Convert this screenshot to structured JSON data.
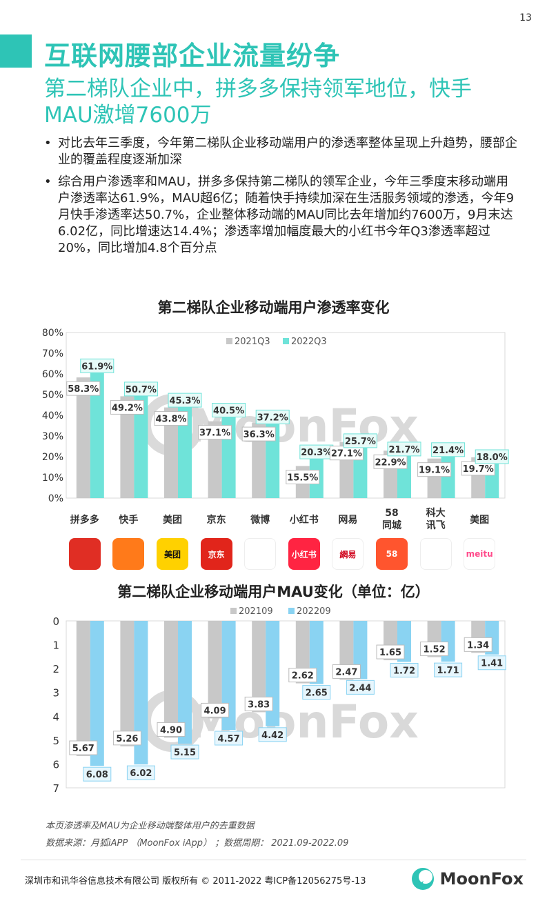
{
  "page_number": "13",
  "header": {
    "title": "互联网腰部企业流量纷争",
    "subtitle": "第二梯队企业中，拼多多保持领军地位，快手MAU激增7600万"
  },
  "bullets": [
    "对比去年三季度，今年第二梯队企业移动端用户的渗透率整体呈现上升趋势，腰部企业的覆盖程度逐渐加深",
    "综合用户渗透率和MAU，拼多多保持第二梯队的领军企业，今年三季度末移动端用户渗透率达61.9%，MAU超6亿；随着快手持续加深在生活服务领域的渗透，今年9月快手渗透率达50.7%，企业整体移动端的MAU同比去年增加约7600万，9月末达6.02亿，同比增速达14.4%；渗透率增加幅度最大的小红书今年Q3渗透率超过20%，同比增加4.8个百分点"
  ],
  "colors": {
    "accent": "#2ec4b6",
    "gray": "#c8c8c8",
    "teal": "#6fe3d9",
    "blue": "#8ad3f2"
  },
  "watermark": "MoonFox",
  "chart_data": [
    {
      "type": "bar",
      "title": "第二梯队企业移动端用户渗透率变化",
      "categories": [
        "拼多多",
        "快手",
        "美团",
        "京东",
        "微博",
        "小红书",
        "网易",
        "58\n同城",
        "科大\n讯飞",
        "美图"
      ],
      "series": [
        {
          "name": "2021Q3",
          "values": [
            58.3,
            49.2,
            43.8,
            37.1,
            36.3,
            15.5,
            27.1,
            22.9,
            19.1,
            19.7
          ],
          "labels": [
            "58.3%",
            "49.2%",
            "43.8%",
            "37.1%",
            "36.3%",
            "15.5%",
            "27.1%",
            "22.9%",
            "19.1%",
            "19.7%"
          ]
        },
        {
          "name": "2022Q3",
          "values": [
            61.9,
            50.7,
            45.3,
            40.5,
            37.2,
            20.3,
            25.7,
            21.7,
            21.4,
            18.0
          ],
          "labels": [
            "61.9%",
            "50.7%",
            "45.3%",
            "40.5%",
            "37.2%",
            "20.3%",
            "25.7%",
            "21.7%",
            "21.4%",
            "18.0%"
          ]
        }
      ],
      "ylim": [
        0,
        80
      ],
      "yticks": [
        "0%",
        "10%",
        "20%",
        "30%",
        "40%",
        "50%",
        "60%",
        "70%",
        "80%"
      ],
      "legend": "top-center"
    },
    {
      "type": "bar",
      "title": "第二梯队企业移动端用户MAU变化（单位：亿）",
      "categories": [
        "拼多多",
        "快手",
        "美团",
        "京东",
        "微博",
        "小红书",
        "网易",
        "58同城",
        "科大讯飞",
        "美图"
      ],
      "series": [
        {
          "name": "202109",
          "values": [
            5.67,
            5.26,
            4.9,
            4.09,
            3.83,
            2.62,
            2.47,
            1.65,
            1.52,
            1.34
          ],
          "labels": [
            "5.67",
            "5.26",
            "4.90",
            "4.09",
            "3.83",
            "2.62",
            "2.47",
            "1.65",
            "1.52",
            "1.34"
          ]
        },
        {
          "name": "202209",
          "values": [
            6.08,
            6.02,
            5.15,
            4.57,
            4.42,
            2.65,
            2.44,
            1.72,
            1.71,
            1.41
          ],
          "labels": [
            "6.08",
            "6.02",
            "5.15",
            "4.57",
            "4.42",
            "2.65",
            "2.44",
            "1.72",
            "1.71",
            "1.41"
          ]
        }
      ],
      "ylim": [
        0,
        7
      ],
      "y_inverted": true,
      "yticks": [
        "0",
        "1",
        "2",
        "3",
        "4",
        "5",
        "6",
        "7"
      ],
      "legend": "top-center"
    }
  ],
  "app_logos": [
    {
      "name": "pinduoduo-logo",
      "text": "",
      "bg": "#e02e24",
      "fg": "#ffffff"
    },
    {
      "name": "kuaishou-logo",
      "text": "",
      "bg": "#ff7a1a",
      "fg": "#ffffff"
    },
    {
      "name": "meituan-logo",
      "text": "美团",
      "bg": "#ffd100",
      "fg": "#111111"
    },
    {
      "name": "jd-logo",
      "text": "京东",
      "bg": "#e1251b",
      "fg": "#ffffff"
    },
    {
      "name": "weibo-logo",
      "text": "",
      "bg": "#ffffff",
      "fg": "#e6162d"
    },
    {
      "name": "xiaohongshu-logo",
      "text": "小红书",
      "bg": "#ff2442",
      "fg": "#ffffff"
    },
    {
      "name": "netease-logo",
      "text": "網易",
      "bg": "#ffffff",
      "fg": "#d0021b"
    },
    {
      "name": "58-logo",
      "text": "58",
      "bg": "#ff552e",
      "fg": "#ffffff"
    },
    {
      "name": "iflytek-logo",
      "text": "",
      "bg": "#ffffff",
      "fg": "#1f3d8a"
    },
    {
      "name": "meitu-logo",
      "text": "meitu",
      "bg": "#ffffff",
      "fg": "#ff4b8b"
    }
  ],
  "notes": {
    "note1": "本页渗透率及MAU为企业移动端整体用户的去重数据",
    "note2": "数据来源：月狐iAPP （MoonFox iApp） ；数据周期： 2021.09-2022.09"
  },
  "footer": {
    "copyright": "深圳市和讯华谷信息技术有限公司 版权所有 © 2011-2022 粤ICP备12056275号-13",
    "logo_text": "MoonFox"
  }
}
